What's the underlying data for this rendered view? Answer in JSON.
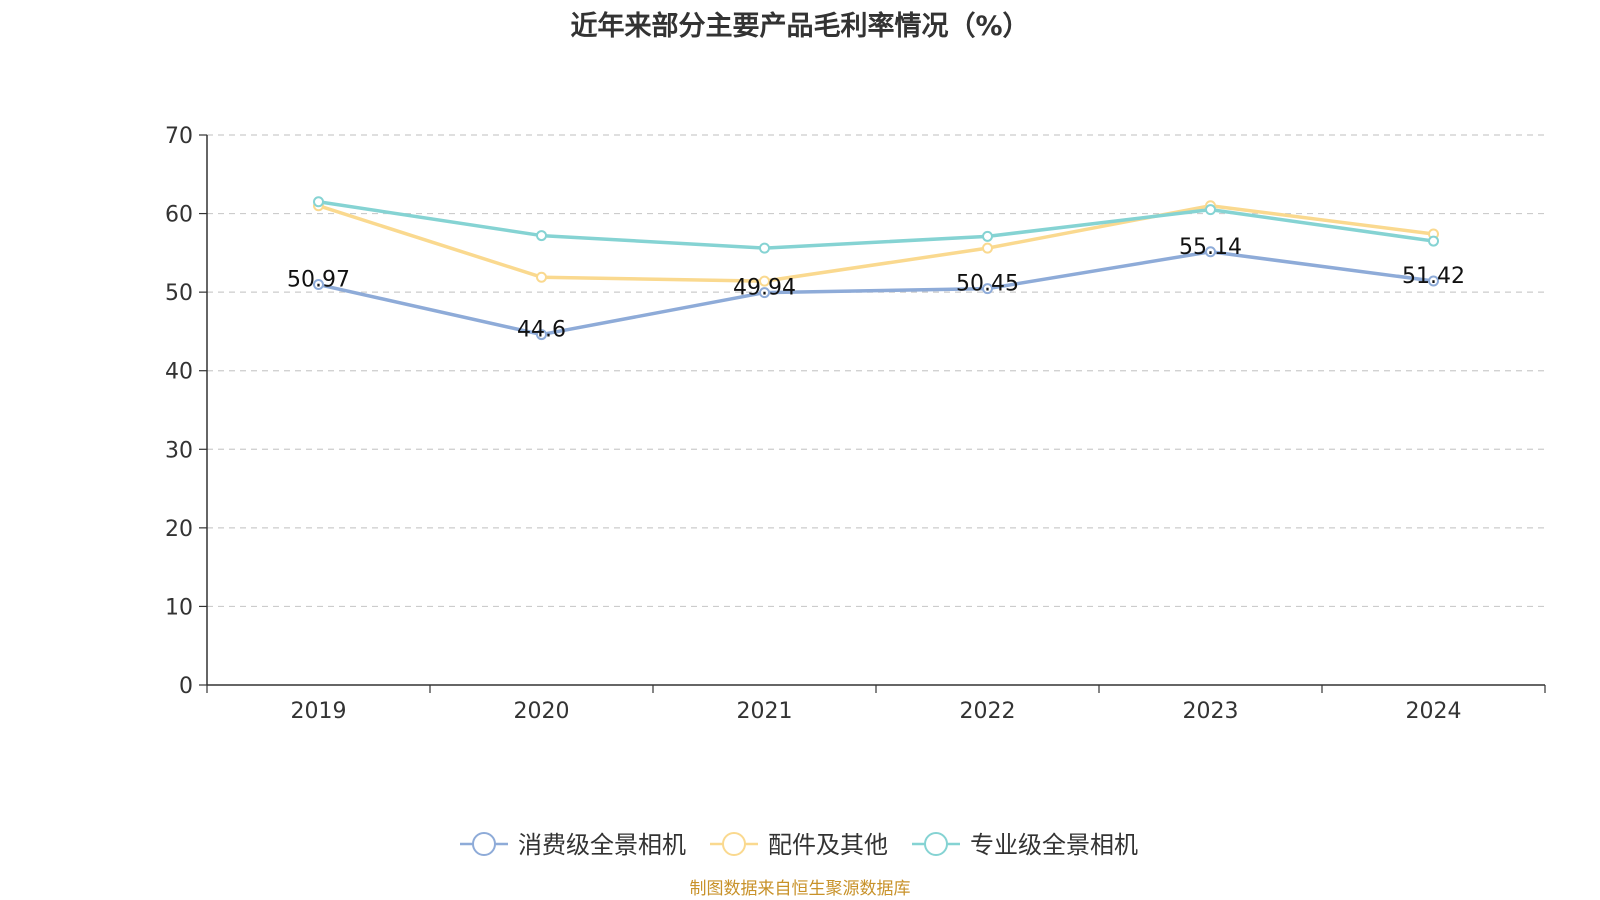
{
  "chart_data": {
    "type": "line",
    "title": "近年来部分主要产品毛利率情况（%）",
    "categories": [
      "2019",
      "2020",
      "2021",
      "2022",
      "2023",
      "2024"
    ],
    "ylim": [
      0,
      70
    ],
    "yticks": [
      "0",
      "10",
      "20",
      "30",
      "40",
      "50",
      "60",
      "70"
    ],
    "grid": true,
    "legend_position": "bottom",
    "series": [
      {
        "name": "消费级全景相机",
        "color": "#8eabd8",
        "values": [
          50.97,
          44.6,
          49.94,
          50.45,
          55.14,
          51.42
        ],
        "labels": [
          "50.97",
          "44.6",
          "49.94",
          "50.45",
          "55.14",
          "51.42"
        ]
      },
      {
        "name": "配件及其他",
        "color": "#fad98f",
        "values": [
          61.0,
          51.9,
          51.4,
          55.6,
          61.0,
          57.4
        ]
      },
      {
        "name": "专业级全景相机",
        "color": "#85d3d3",
        "values": [
          61.5,
          57.2,
          55.6,
          57.1,
          60.5,
          56.5
        ]
      }
    ]
  },
  "source_note": "制图数据来自恒生聚源数据库"
}
